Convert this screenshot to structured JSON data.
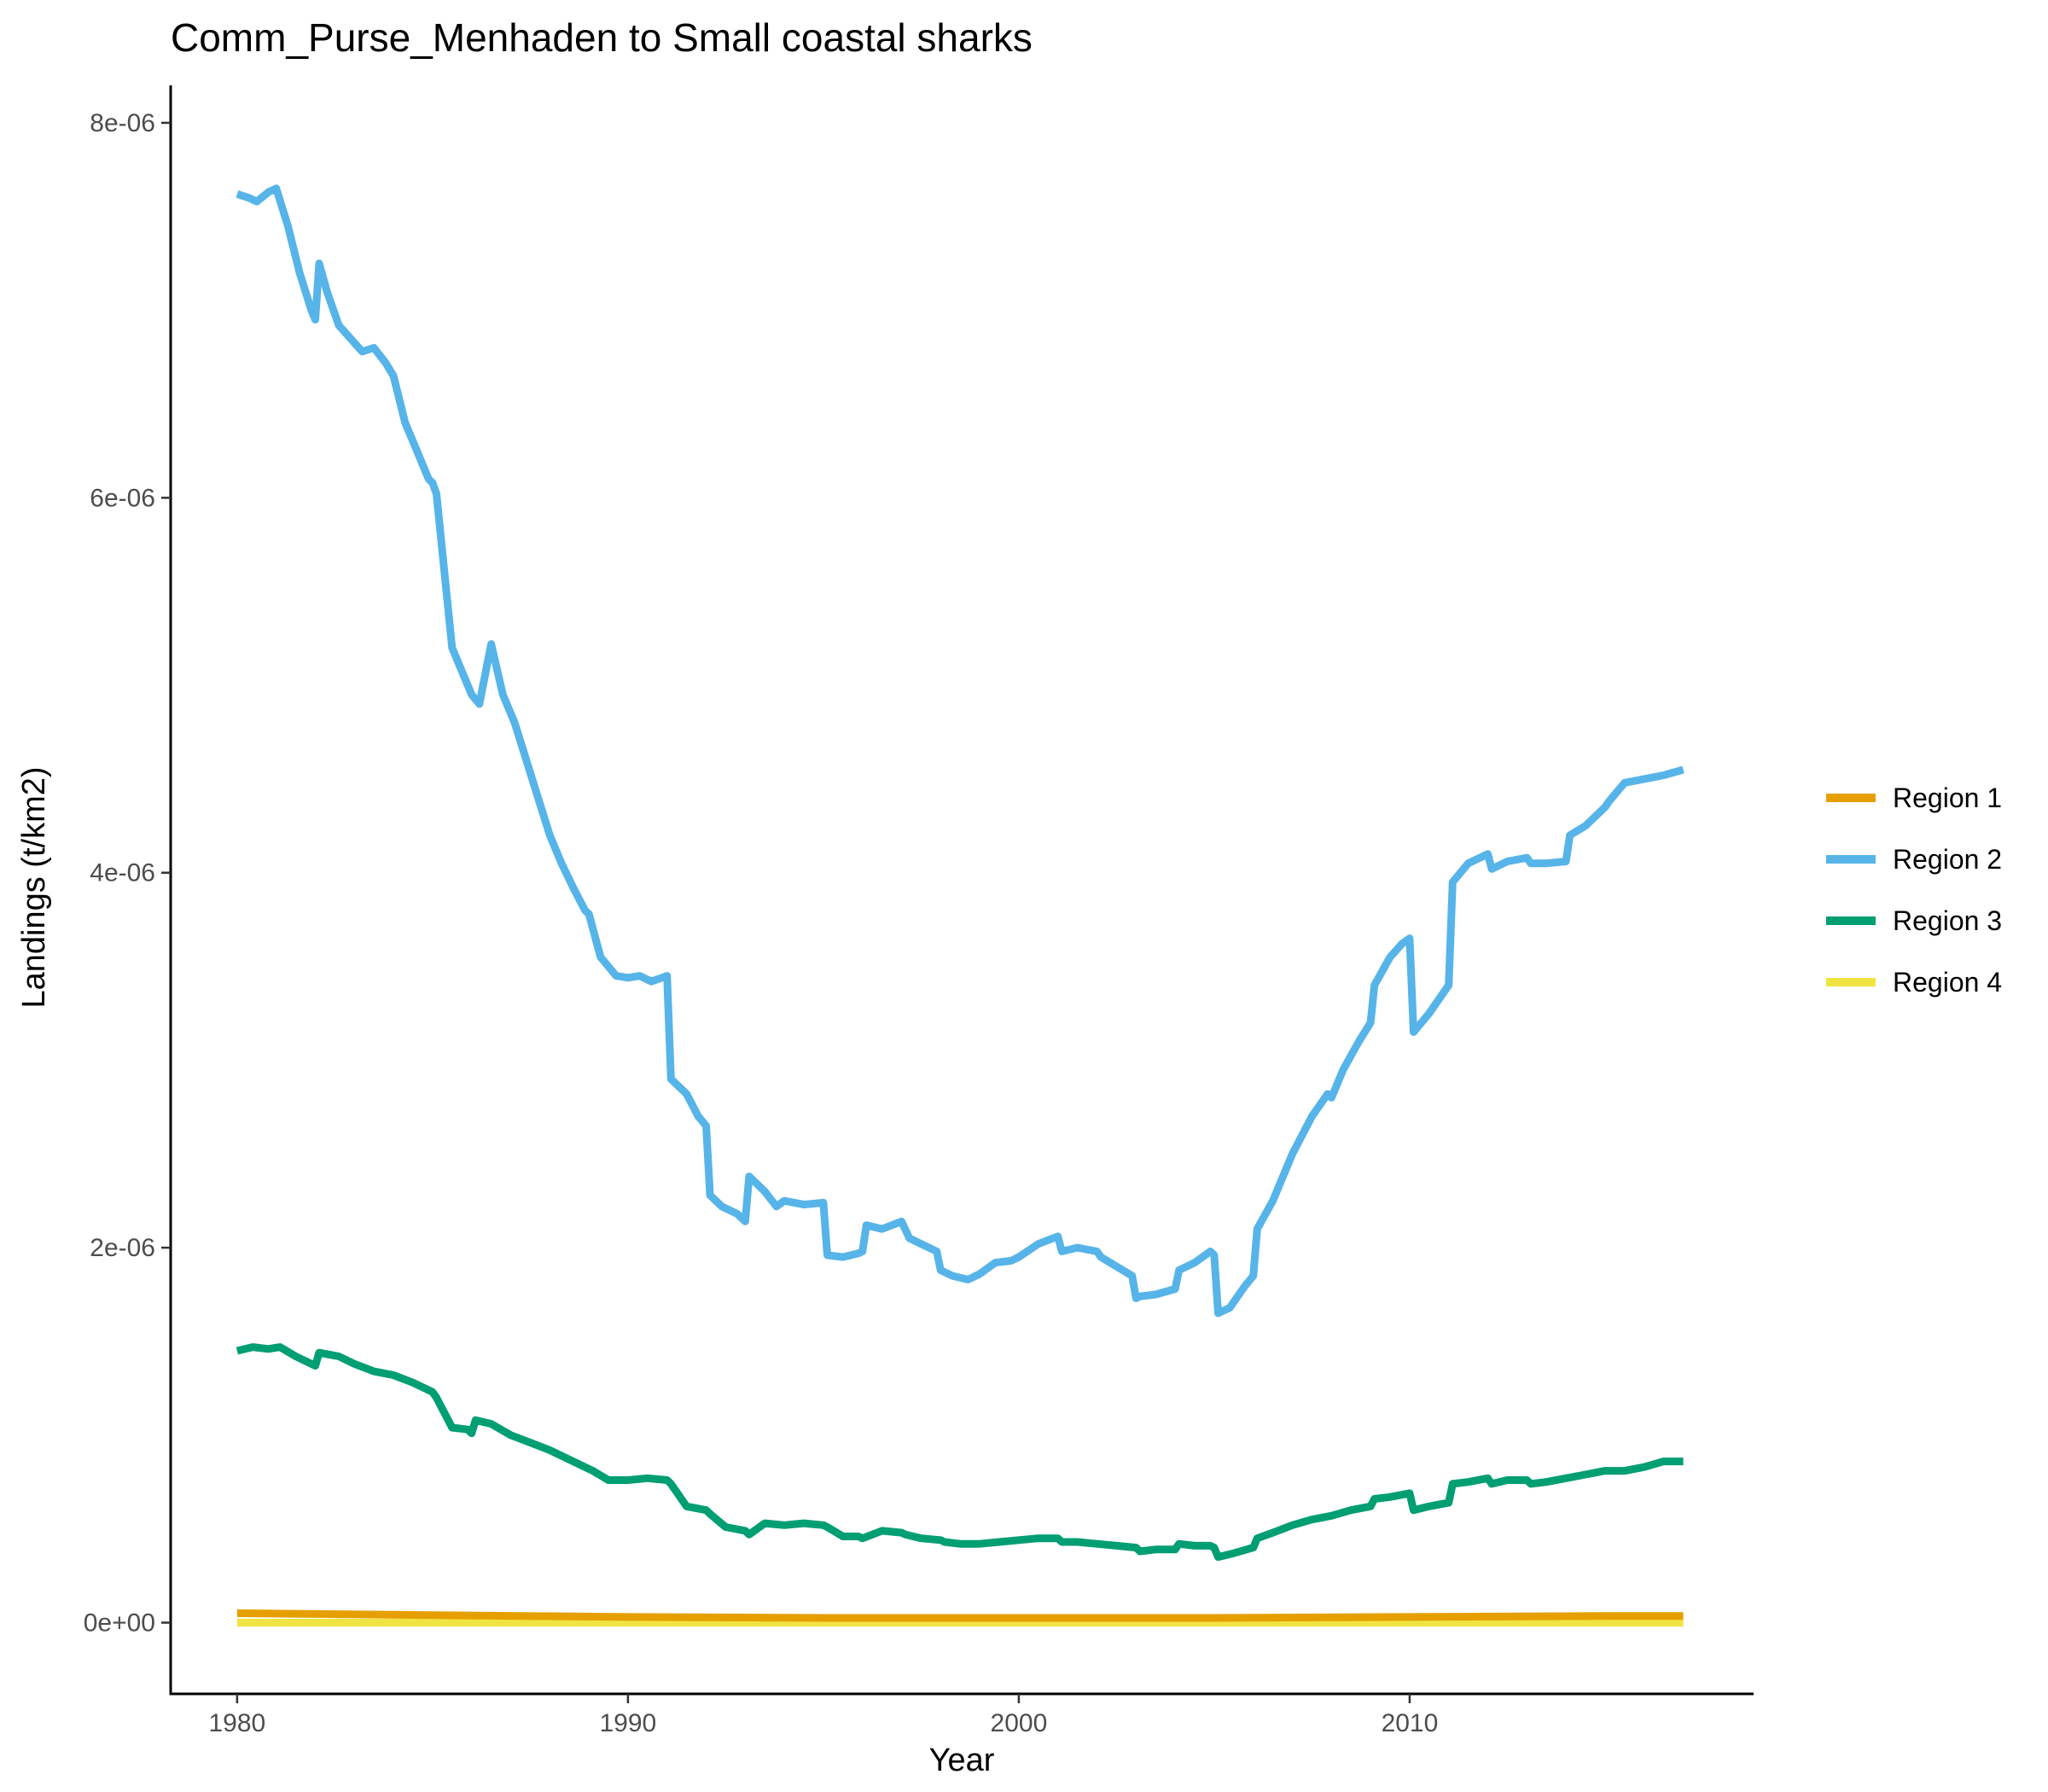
{
  "chart_data": {
    "type": "line",
    "title": "Comm_Purse_Menhaden to Small coastal sharks",
    "xlabel": "Year",
    "ylabel": "Landings (t/km2)",
    "xlim": [
      1978.3,
      2018.8
    ],
    "ylim": [
      -3.8e-07,
      8.2e-06
    ],
    "x_ticks": [
      1980,
      1990,
      2000,
      2010
    ],
    "x_tick_labels": [
      "1980",
      "1990",
      "2000",
      "2010"
    ],
    "y_ticks": [
      0,
      2e-06,
      4e-06,
      6e-06,
      8e-06
    ],
    "y_tick_labels": [
      "0e+00",
      "2e-06",
      "4e-06",
      "6e-06",
      "8e-06"
    ],
    "grid": false,
    "legend_position": "right",
    "series": [
      {
        "name": "Region 1",
        "color": "#E69F00",
        "x": [
          1980,
          1985,
          1990,
          1995,
          2000,
          2005,
          2010,
          2015,
          2017
        ],
        "y": [
          5e-08,
          4e-08,
          3e-08,
          2.5e-08,
          2.5e-08,
          2.5e-08,
          3e-08,
          3.5e-08,
          3.5e-08
        ]
      },
      {
        "name": "Region 2",
        "color": "#56B4E9",
        "x": [
          1980.0,
          1980.3,
          1980.5,
          1980.8,
          1981.0,
          1981.3,
          1981.6,
          1981.9,
          1982.0,
          1982.1,
          1982.3,
          1982.6,
          1982.9,
          1983.2,
          1983.5,
          1983.8,
          1984.0,
          1984.3,
          1984.6,
          1984.9,
          1985.0,
          1985.1,
          1985.5,
          1985.8,
          1986.0,
          1986.2,
          1986.5,
          1986.8,
          1987.1,
          1987.4,
          1987.7,
          1988.0,
          1988.3,
          1988.6,
          1988.9,
          1989.0,
          1989.3,
          1989.7,
          1990.0,
          1990.3,
          1990.6,
          1991.0,
          1991.1,
          1991.5,
          1991.8,
          1992.0,
          1992.1,
          1992.4,
          1992.8,
          1993.0,
          1993.1,
          1993.5,
          1993.8,
          1994.0,
          1994.5,
          1995.0,
          1995.1,
          1995.5,
          1995.9,
          1996.0,
          1996.1,
          1996.5,
          1997.0,
          1997.2,
          1997.5,
          1997.9,
          1998.0,
          1998.3,
          1998.7,
          1999.0,
          1999.4,
          1999.8,
          2000.0,
          2000.5,
          2001.0,
          2001.1,
          2001.5,
          2002.0,
          2002.1,
          2002.5,
          2002.9,
          2003.0,
          2003.1,
          2003.5,
          2004.0,
          2004.1,
          2004.5,
          2004.9,
          2005.0,
          2005.1,
          2005.4,
          2005.8,
          2006.0,
          2006.1,
          2006.5,
          2007.0,
          2007.5,
          2007.9,
          2008.0,
          2008.3,
          2008.7,
          2009.0,
          2009.1,
          2009.5,
          2009.8,
          2010.0,
          2010.1,
          2010.5,
          2011.0,
          2011.1,
          2011.5,
          2012.0,
          2012.1,
          2012.5,
          2013.0,
          2013.1,
          2013.5,
          2014.0,
          2014.1,
          2014.5,
          2015.0,
          2015.1,
          2015.5,
          2016.0,
          2016.5,
          2017.0
        ],
        "y": [
          7.62e-06,
          7.6e-06,
          7.58e-06,
          7.63e-06,
          7.65e-06,
          7.45e-06,
          7.2e-06,
          7e-06,
          6.95e-06,
          7.25e-06,
          7.1e-06,
          6.92e-06,
          6.85e-06,
          6.78e-06,
          6.8e-06,
          6.72e-06,
          6.65e-06,
          6.4e-06,
          6.25e-06,
          6.1e-06,
          6.08e-06,
          6.02e-06,
          5.2e-06,
          5.05e-06,
          4.95e-06,
          4.9e-06,
          5.22e-06,
          4.95e-06,
          4.8e-06,
          4.6e-06,
          4.4e-06,
          4.2e-06,
          4.05e-06,
          3.92e-06,
          3.8e-06,
          3.78e-06,
          3.55e-06,
          3.45e-06,
          3.44e-06,
          3.45e-06,
          3.42e-06,
          3.45e-06,
          2.9e-06,
          2.82e-06,
          2.7e-06,
          2.65e-06,
          2.28e-06,
          2.22e-06,
          2.18e-06,
          2.14e-06,
          2.38e-06,
          2.3e-06,
          2.22e-06,
          2.25e-06,
          2.23e-06,
          2.24e-06,
          1.96e-06,
          1.95e-06,
          1.97e-06,
          1.98e-06,
          2.12e-06,
          2.1e-06,
          2.14e-06,
          2.05e-06,
          2.02e-06,
          1.98e-06,
          1.88e-06,
          1.85e-06,
          1.83e-06,
          1.86e-06,
          1.92e-06,
          1.93e-06,
          1.95e-06,
          2.02e-06,
          2.06e-06,
          1.98e-06,
          2e-06,
          1.98e-06,
          1.95e-06,
          1.9e-06,
          1.85e-06,
          1.73e-06,
          1.74e-06,
          1.75e-06,
          1.78e-06,
          1.88e-06,
          1.92e-06,
          1.98e-06,
          1.96e-06,
          1.65e-06,
          1.68e-06,
          1.8e-06,
          1.85e-06,
          2.1e-06,
          2.25e-06,
          2.5e-06,
          2.7e-06,
          2.82e-06,
          2.8e-06,
          2.95e-06,
          3.1e-06,
          3.2e-06,
          3.4e-06,
          3.55e-06,
          3.62e-06,
          3.65e-06,
          3.15e-06,
          3.25e-06,
          3.4e-06,
          3.95e-06,
          4.05e-06,
          4.1e-06,
          4.02e-06,
          4.06e-06,
          4.08e-06,
          4.05e-06,
          4.05e-06,
          4.06e-06,
          4.2e-06,
          4.25e-06,
          4.35e-06,
          4.38e-06,
          4.48e-06,
          4.5e-06,
          4.52e-06,
          4.55e-06
        ]
      },
      {
        "name": "Region 3",
        "color": "#009E73",
        "x": [
          1980.0,
          1980.4,
          1980.8,
          1981.1,
          1981.5,
          1981.9,
          1982.0,
          1982.1,
          1982.6,
          1983.0,
          1983.5,
          1984.0,
          1984.5,
          1984.9,
          1985.0,
          1985.1,
          1985.5,
          1985.9,
          1986.0,
          1986.1,
          1986.5,
          1987.0,
          1987.5,
          1988.0,
          1988.5,
          1989.0,
          1989.1,
          1989.5,
          1990.0,
          1990.5,
          1991.0,
          1991.1,
          1991.5,
          1992.0,
          1992.1,
          1992.5,
          1993.0,
          1993.1,
          1993.5,
          1994.0,
          1994.5,
          1995.0,
          1995.1,
          1995.5,
          1995.9,
          1996.0,
          1996.5,
          1997.0,
          1997.1,
          1997.5,
          1998.0,
          1998.1,
          1998.5,
          1999.0,
          1999.5,
          2000.0,
          2000.5,
          2001.0,
          2001.1,
          2001.5,
          2002.0,
          2002.5,
          2003.0,
          2003.1,
          2003.5,
          2004.0,
          2004.1,
          2004.5,
          2004.9,
          2005.0,
          2005.1,
          2005.5,
          2006.0,
          2006.1,
          2006.5,
          2007.0,
          2007.5,
          2008.0,
          2008.5,
          2009.0,
          2009.1,
          2009.5,
          2010.0,
          2010.1,
          2010.5,
          2011.0,
          2011.1,
          2011.5,
          2012.0,
          2012.1,
          2012.5,
          2013.0,
          2013.1,
          2013.5,
          2014.0,
          2014.5,
          2015.0,
          2015.5,
          2016.0,
          2016.5,
          2017.0
        ],
        "y": [
          1.45e-06,
          1.47e-06,
          1.46e-06,
          1.47e-06,
          1.42e-06,
          1.38e-06,
          1.37e-06,
          1.44e-06,
          1.42e-06,
          1.38e-06,
          1.34e-06,
          1.32e-06,
          1.28e-06,
          1.24e-06,
          1.23e-06,
          1.2e-06,
          1.04e-06,
          1.03e-06,
          1.01e-06,
          1.08e-06,
          1.06e-06,
          1e-06,
          9.6e-07,
          9.2e-07,
          8.7e-07,
          8.2e-07,
          8.1e-07,
          7.6e-07,
          7.6e-07,
          7.7e-07,
          7.6e-07,
          7.4e-07,
          6.2e-07,
          6e-07,
          5.8e-07,
          5.1e-07,
          4.9e-07,
          4.7e-07,
          5.3e-07,
          5.2e-07,
          5.3e-07,
          5.2e-07,
          5.1e-07,
          4.6e-07,
          4.6e-07,
          4.5e-07,
          4.9e-07,
          4.8e-07,
          4.7e-07,
          4.5e-07,
          4.4e-07,
          4.3e-07,
          4.2e-07,
          4.2e-07,
          4.3e-07,
          4.4e-07,
          4.5e-07,
          4.5e-07,
          4.3e-07,
          4.3e-07,
          4.2e-07,
          4.1e-07,
          4e-07,
          3.8e-07,
          3.9e-07,
          3.9e-07,
          4.2e-07,
          4.1e-07,
          4.1e-07,
          4e-07,
          3.5e-07,
          3.7e-07,
          4e-07,
          4.5e-07,
          4.8e-07,
          5.2e-07,
          5.5e-07,
          5.7e-07,
          6e-07,
          6.2e-07,
          6.6e-07,
          6.7e-07,
          6.9e-07,
          6e-07,
          6.2e-07,
          6.4e-07,
          7.4e-07,
          7.5e-07,
          7.7e-07,
          7.4e-07,
          7.6e-07,
          7.6e-07,
          7.4e-07,
          7.5e-07,
          7.7e-07,
          7.9e-07,
          8.1e-07,
          8.1e-07,
          8.3e-07,
          8.6e-07,
          8.6e-07
        ]
      },
      {
        "name": "Region 4",
        "color": "#F0E442",
        "x": [
          1980,
          1990,
          2000,
          2010,
          2017
        ],
        "y": [
          0,
          0,
          0,
          0,
          0
        ]
      }
    ]
  }
}
